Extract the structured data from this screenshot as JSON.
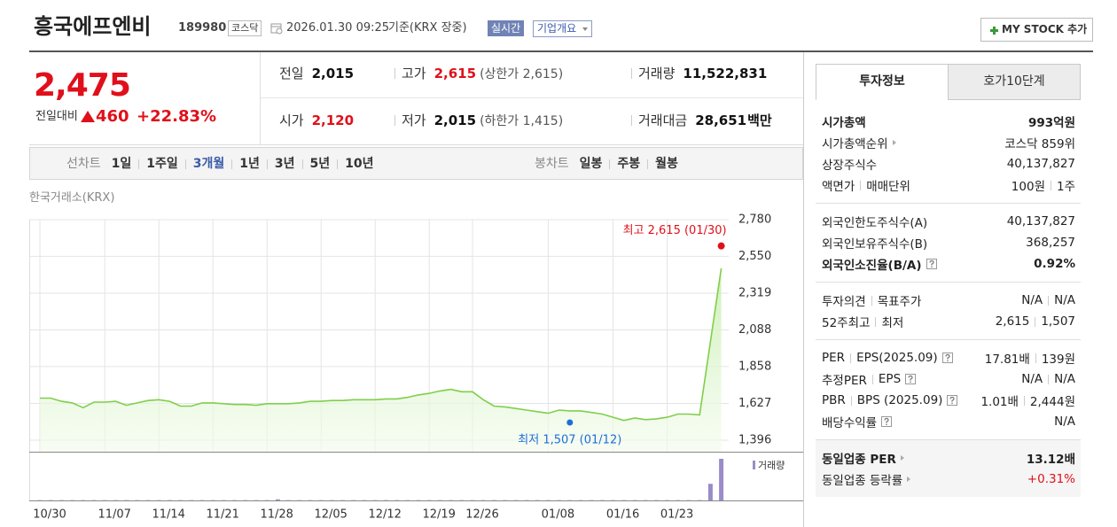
{
  "header": {
    "name": "흥국에프엔비",
    "code": "189980",
    "market": "코스닥",
    "datetime": "2026.01.30 09:25",
    "basis": "기준(KRX 장중)",
    "realtime": "실시간",
    "company": "기업개요",
    "mystock": "MY STOCK 추가"
  },
  "summary": {
    "price": "2,475",
    "change_label": "전일대비",
    "change": "460",
    "change_pct": "+22.83%",
    "color": "#e0101a",
    "cells": [
      [
        {
          "label": "전일",
          "value": "2,015"
        },
        {
          "label": "고가",
          "value": "2,615",
          "sub": "(상한가 2,615)",
          "color": "#e0101a"
        },
        {
          "label": "거래량",
          "value": "11,522,831"
        }
      ],
      [
        {
          "label": "시가",
          "value": "2,120",
          "color": "#e0101a"
        },
        {
          "label": "저가",
          "value": "2,015",
          "sub": "(하한가 1,415)"
        },
        {
          "label": "거래대금",
          "value": "28,651",
          "unit": "백만"
        }
      ]
    ]
  },
  "tabs": {
    "line_label": "선차트",
    "line": [
      "1일",
      "1주일",
      "3개월",
      "1년",
      "3년",
      "5년",
      "10년"
    ],
    "selected": 2,
    "candle_label": "봉차트",
    "candle": [
      "일봉",
      "주봉",
      "월봉"
    ]
  },
  "chart_data": {
    "type": "line",
    "source": "한국거래소(KRX)",
    "categories": [
      "10/30",
      null,
      null,
      null,
      null,
      null,
      "11/07",
      null,
      null,
      null,
      null,
      "11/14",
      null,
      null,
      null,
      null,
      "11/21",
      null,
      null,
      null,
      null,
      "11/28",
      null,
      null,
      null,
      null,
      "12/05",
      null,
      null,
      null,
      null,
      "12/12",
      null,
      null,
      null,
      null,
      "12/19",
      null,
      null,
      null,
      "12/26",
      null,
      null,
      null,
      null,
      null,
      null,
      "01/08",
      null,
      null,
      null,
      null,
      null,
      "01/16",
      null,
      null,
      null,
      null,
      "01/23",
      null,
      null,
      null,
      null,
      null
    ],
    "values": [
      1660,
      1660,
      1640,
      1630,
      1600,
      1635,
      1635,
      1640,
      1615,
      1630,
      1645,
      1650,
      1640,
      1610,
      1610,
      1630,
      1630,
      1625,
      1620,
      1620,
      1615,
      1625,
      1625,
      1625,
      1630,
      1640,
      1640,
      1645,
      1645,
      1650,
      1650,
      1650,
      1655,
      1655,
      1665,
      1680,
      1690,
      1705,
      1715,
      1700,
      1700,
      1650,
      1610,
      1605,
      1595,
      1585,
      1575,
      1565,
      1585,
      1580,
      1580,
      1570,
      1560,
      1540,
      1520,
      1535,
      1525,
      1530,
      1540,
      1560,
      1560,
      1555,
      2015,
      2475
    ],
    "color": "#7fcf4a",
    "ylim": [
      1396,
      2780
    ],
    "yticks": [
      {
        "value": 1396,
        "label": "1,396"
      },
      {
        "value": 1627,
        "label": "1,627"
      },
      {
        "value": 1858,
        "label": "1,858"
      },
      {
        "value": 2088,
        "label": "2,088"
      },
      {
        "value": 2319,
        "label": "2,319"
      },
      {
        "value": 2550,
        "label": "2,550"
      },
      {
        "value": 2780,
        "label": "2,780"
      }
    ],
    "grid": true,
    "high": {
      "value": 2615,
      "label": "최고 2,615 (01/30)",
      "color": "#e0101a"
    },
    "low": {
      "value": 1507,
      "label": "최저 1,507 (01/12)",
      "color": "#1d6fd6"
    },
    "volume": {
      "name": "거래량",
      "color": "#9a8cc8",
      "values": [
        80000,
        80000,
        80000,
        80000,
        80000,
        80000,
        80000,
        80000,
        80000,
        80000,
        80000,
        80000,
        80000,
        80000,
        80000,
        80000,
        80000,
        80000,
        80000,
        80000,
        80000,
        80000,
        300000,
        80000,
        80000,
        80000,
        80000,
        80000,
        80000,
        80000,
        80000,
        80000,
        80000,
        80000,
        80000,
        80000,
        80000,
        80000,
        80000,
        80000,
        80000,
        80000,
        80000,
        80000,
        80000,
        80000,
        80000,
        80000,
        80000,
        80000,
        80000,
        80000,
        80000,
        80000,
        80000,
        80000,
        80000,
        80000,
        80000,
        80000,
        80000,
        80000,
        4600000,
        11522831
      ]
    }
  },
  "side": {
    "tabs": [
      "투자정보",
      "호가10단계"
    ],
    "active": 0,
    "sections": [
      {
        "rows": [
          {
            "label": [
              "시가총액"
            ],
            "value": [
              "993억원"
            ],
            "bold": true
          },
          {
            "label": [
              "시가총액순위"
            ],
            "arrow": true,
            "value": [
              "코스닥 859위"
            ]
          },
          {
            "label": [
              "상장주식수"
            ],
            "value": [
              "40,137,827"
            ]
          },
          {
            "label": [
              "액면가",
              "매매단위"
            ],
            "value": [
              "100원",
              "1주"
            ]
          }
        ]
      },
      {
        "rows": [
          {
            "label": [
              "외국인한도주식수(A)"
            ],
            "value": [
              "40,137,827"
            ]
          },
          {
            "label": [
              "외국인보유주식수(B)"
            ],
            "value": [
              "368,257"
            ]
          },
          {
            "label": [
              "외국인소진율(B/A)"
            ],
            "help": true,
            "value": [
              "0.92%"
            ],
            "bold": true
          }
        ]
      },
      {
        "rows": [
          {
            "label": [
              "투자의견",
              "목표주가"
            ],
            "value": [
              "N/A",
              "N/A"
            ]
          },
          {
            "label": [
              "52주최고",
              "최저"
            ],
            "value": [
              "2,615",
              "1,507"
            ]
          }
        ]
      },
      {
        "rows": [
          {
            "label": [
              "PER",
              "EPS(2025.09)"
            ],
            "help": true,
            "value": [
              "17.81배",
              "139원"
            ]
          },
          {
            "label": [
              "추정PER",
              "EPS"
            ],
            "help": true,
            "value": [
              "N/A",
              "N/A"
            ]
          },
          {
            "label": [
              "PBR",
              "BPS (2025.09)"
            ],
            "help": true,
            "value": [
              "1.01배",
              "2,444원"
            ]
          },
          {
            "label": [
              "배당수익률"
            ],
            "help": true,
            "value": [
              "N/A"
            ]
          }
        ]
      },
      {
        "shaded": true,
        "rows": [
          {
            "label": [
              "동일업종 PER"
            ],
            "arrow": true,
            "value": [
              "13.12배"
            ],
            "bold": true
          },
          {
            "label": [
              "동일업종 등락률"
            ],
            "arrow": true,
            "value": [
              "+0.31%"
            ],
            "color": "#e0101a"
          }
        ]
      }
    ]
  }
}
